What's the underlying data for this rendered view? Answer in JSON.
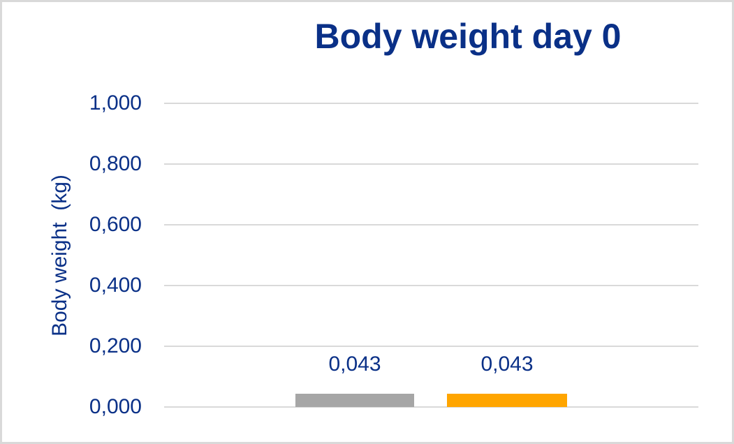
{
  "chart_data": {
    "type": "bar",
    "title": "Body weight day 0",
    "xlabel": "",
    "ylabel": "Body weight  (kg)",
    "categories": [
      ""
    ],
    "series": [
      {
        "name": "bar-gray",
        "color": "#a6a6a6",
        "values": [
          0.043
        ]
      },
      {
        "name": "bar-orange",
        "color": "#ffa500",
        "values": [
          0.043
        ]
      }
    ],
    "data_labels": [
      "0,043",
      "0,043"
    ],
    "ylim": [
      0,
      1.0
    ],
    "ytick_values": [
      1.0,
      0.8,
      0.6,
      0.4,
      0.2,
      0.0
    ],
    "ytick_labels": [
      "1,000",
      "0,800",
      "0,600",
      "0,400",
      "0,200",
      "0,000"
    ],
    "grid": true,
    "legend": false,
    "number_format": "decimal-comma"
  },
  "colors": {
    "text_navy": "#0a3087",
    "gridline": "#d9d9d9",
    "frame_border": "#d9d9d9",
    "background": "#ffffff",
    "bar_gray": "#a6a6a6",
    "bar_orange": "#ffa500"
  }
}
